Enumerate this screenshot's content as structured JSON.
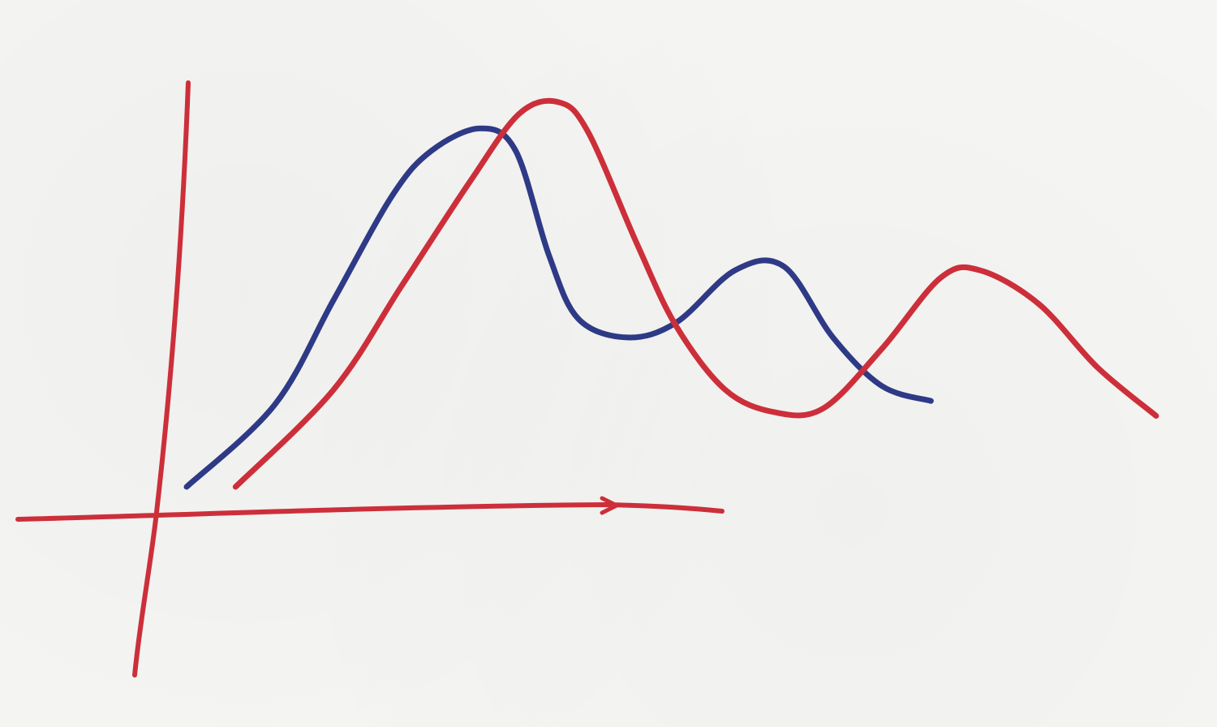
{
  "chart_data": {
    "type": "line",
    "title": "",
    "xlabel": "",
    "ylabel": "",
    "grid": false,
    "legend": "none",
    "axis_color": "#cc2f3a",
    "series": [
      {
        "color": "#2e3a86",
        "points": [
          [
            0.0,
            0.0
          ],
          [
            0.45,
            0.22
          ],
          [
            0.75,
            0.5
          ],
          [
            1.05,
            0.78
          ],
          [
            1.25,
            0.9
          ],
          [
            1.5,
            0.96
          ],
          [
            1.68,
            0.9
          ],
          [
            1.85,
            0.62
          ],
          [
            2.0,
            0.45
          ],
          [
            2.25,
            0.4
          ],
          [
            2.5,
            0.44
          ],
          [
            2.8,
            0.58
          ],
          [
            3.05,
            0.59
          ],
          [
            3.3,
            0.4
          ],
          [
            3.55,
            0.27
          ],
          [
            3.8,
            0.23
          ]
        ]
      },
      {
        "color": "#cc2f3a",
        "points": [
          [
            0.25,
            0.0
          ],
          [
            0.75,
            0.26
          ],
          [
            1.1,
            0.54
          ],
          [
            1.45,
            0.82
          ],
          [
            1.7,
            1.0
          ],
          [
            1.9,
            1.03
          ],
          [
            2.05,
            0.95
          ],
          [
            2.3,
            0.65
          ],
          [
            2.5,
            0.43
          ],
          [
            2.75,
            0.26
          ],
          [
            3.0,
            0.2
          ],
          [
            3.25,
            0.21
          ],
          [
            3.55,
            0.37
          ],
          [
            3.85,
            0.56
          ],
          [
            4.05,
            0.58
          ],
          [
            4.35,
            0.49
          ],
          [
            4.65,
            0.32
          ],
          [
            4.95,
            0.19
          ]
        ]
      }
    ]
  }
}
